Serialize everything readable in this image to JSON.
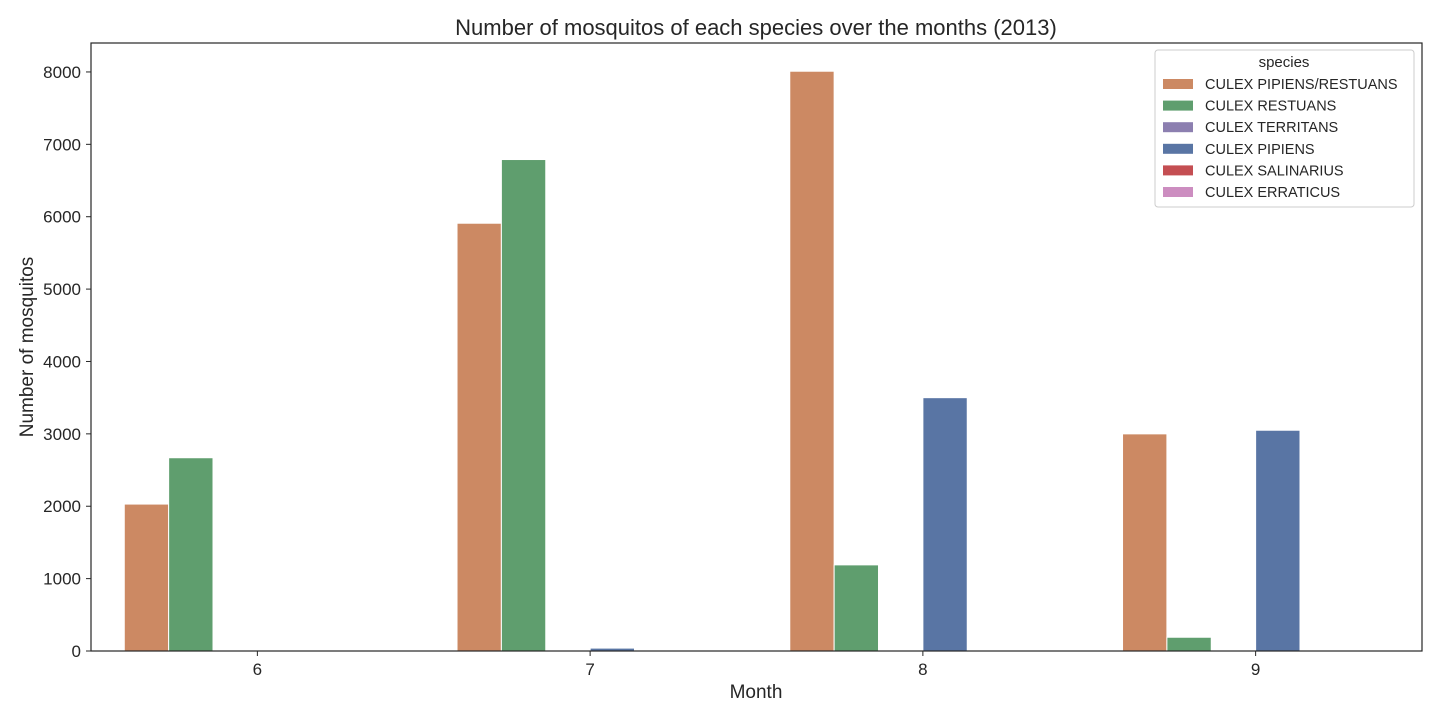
{
  "chart_data": {
    "type": "bar",
    "title": "Number of mosquitos of each species over the months (2013)",
    "xlabel": "Month",
    "ylabel": "Number of mosquitos",
    "categories": [
      "6",
      "7",
      "8",
      "9"
    ],
    "ylim": [
      0,
      8400
    ],
    "yticks": [
      0,
      1000,
      2000,
      3000,
      4000,
      5000,
      6000,
      7000,
      8000
    ],
    "grid": false,
    "legend": {
      "title": "species",
      "placement": "top-right"
    },
    "series": [
      {
        "name": "CULEX PIPIENS/RESTUANS",
        "color": "#cc8963",
        "values": [
          2030,
          5910,
          8010,
          3000
        ]
      },
      {
        "name": "CULEX RESTUANS",
        "color": "#5f9e6e",
        "values": [
          2670,
          6790,
          1190,
          190
        ]
      },
      {
        "name": "CULEX TERRITANS",
        "color": "#8c7fb0",
        "values": [
          0,
          0,
          0,
          0
        ]
      },
      {
        "name": "CULEX PIPIENS",
        "color": "#5975a4",
        "values": [
          0,
          40,
          3500,
          3050
        ]
      },
      {
        "name": "CULEX SALINARIUS",
        "color": "#c44e52",
        "values": [
          0,
          0,
          0,
          0
        ]
      },
      {
        "name": "CULEX ERRATICUS",
        "color": "#cc8dc0",
        "values": [
          0,
          0,
          0,
          0
        ]
      }
    ]
  }
}
